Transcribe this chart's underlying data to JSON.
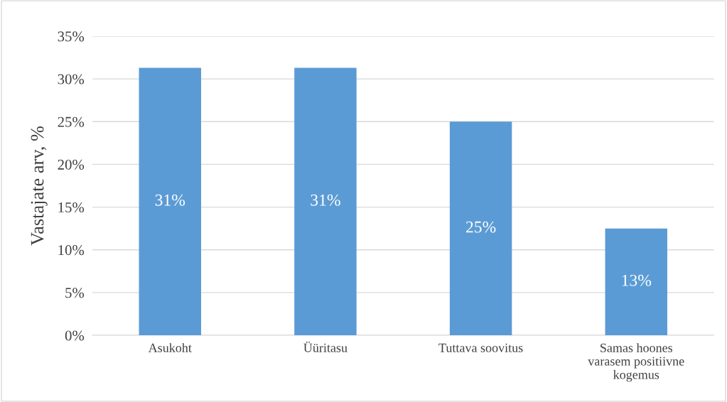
{
  "chart_data": {
    "type": "bar",
    "ylabel": "Vastajate arv, %",
    "categories": [
      "Asukoht",
      "Üüritasu",
      "Tuttava soovitus",
      "Samas hoones varasem positiivne kogemus"
    ],
    "values": [
      31.3,
      31.3,
      25,
      12.5
    ],
    "value_labels": [
      "31%",
      "31%",
      "25%",
      "13%"
    ],
    "color": "#5b9bd5",
    "ylim": [
      0,
      35
    ],
    "yticks": [
      {
        "value": 0,
        "label": "0%"
      },
      {
        "value": 5,
        "label": "5%"
      },
      {
        "value": 10,
        "label": "10%"
      },
      {
        "value": 15,
        "label": "15%"
      },
      {
        "value": 20,
        "label": "20%"
      },
      {
        "value": 25,
        "label": "25%"
      },
      {
        "value": 30,
        "label": "30%"
      },
      {
        "value": 35,
        "label": "35%"
      }
    ],
    "grid": "y"
  }
}
